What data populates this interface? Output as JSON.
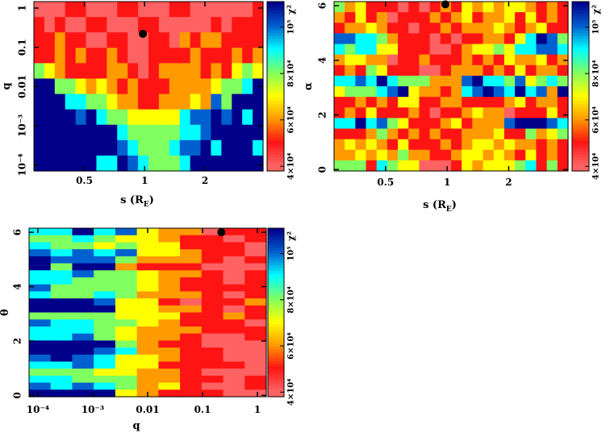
{
  "colors": {
    "c4": "#ff6262",
    "c5": "#ff1414",
    "c6": "#ff9a00",
    "c7": "#ffff00",
    "c8": "#80ff60",
    "c9": "#00ffff",
    "c10": "#0060d0",
    "c11": "#00008a"
  },
  "chart_data": [
    {
      "type": "heatmap",
      "xlabel": {
        "main": "s (R",
        "sub": "E",
        "end": ")"
      },
      "ylabel": "q",
      "xscale": "log",
      "xlim": [
        0.28,
        3.9
      ],
      "yscale": "log",
      "ylim": [
        7e-05,
        1.46
      ],
      "xticks": [
        {
          "v": 0.5,
          "label": "0.5"
        },
        {
          "v": 1,
          "label": "1"
        },
        {
          "v": 2,
          "label": "2"
        }
      ],
      "yticks": [
        {
          "v": 0.0001,
          "label": "10⁻⁴"
        },
        {
          "v": 0.001,
          "label": "10⁻³"
        },
        {
          "v": 0.01,
          "label": "0.01"
        },
        {
          "v": 0.1,
          "label": "0.1"
        },
        {
          "v": 1,
          "label": "1"
        }
      ],
      "colorbar": {
        "label": "χ²",
        "range": [
          3.8,
          11.1
        ],
        "ticks": [
          {
            "v": 4,
            "label": "4×10⁴"
          },
          {
            "v": 6,
            "label": "6×10⁴"
          },
          {
            "v": 8,
            "label": "8×10⁴"
          },
          {
            "v": 10,
            "label": "10⁵"
          }
        ]
      },
      "value_units": "χ² in units of 10⁴ (a=10, b=11)",
      "marker": {
        "x": 0.98,
        "y": 0.22
      },
      "grid": [
        "4445544455444554444445",
        "5454455444554444454555",
        "5565544554455465665555",
        "5565655654455556555656",
        "8765555665456666565787",
        "bb8876765655566667889b",
        "bbb99887665566676a8bbb",
        "bbbbab988777779aabab9b",
        "bbbbbbbb98888899abbbbb",
        "bbbbbbbba98889aab9bbb9",
        "bbbbbb99ba98889bbbbbbb"
      ]
    },
    {
      "type": "heatmap",
      "xlabel": {
        "main": "s (R",
        "sub": "E",
        "end": ")"
      },
      "ylabel": "α",
      "xscale": "log",
      "xlim": [
        0.28,
        3.9
      ],
      "yscale": "linear",
      "ylim": [
        -0.05,
        6.15
      ],
      "xticks": [
        {
          "v": 0.5,
          "label": "0.5"
        },
        {
          "v": 1,
          "label": "1"
        },
        {
          "v": 2,
          "label": "2"
        }
      ],
      "yticks": [
        {
          "v": 0,
          "label": "0"
        },
        {
          "v": 2,
          "label": "2"
        },
        {
          "v": 4,
          "label": "4"
        },
        {
          "v": 6,
          "label": "6"
        }
      ],
      "colorbar": {
        "label": "χ²",
        "range": [
          3.8,
          11.1
        ],
        "ticks": [
          {
            "v": 4,
            "label": "4×10⁴"
          },
          {
            "v": 6,
            "label": "6×10⁴"
          },
          {
            "v": 8,
            "label": "8×10⁴"
          },
          {
            "v": 10,
            "label": "10⁵"
          }
        ]
      },
      "value_units": "χ² in units of 10⁴ (a=10, b=11)",
      "marker": {
        "x": 0.98,
        "y": 6.05
      },
      "grid": [
        "8675554545657676776565",
        "6575645556567566757565",
        "5667655455656667656755",
        "aa99865554545566579ba8",
        "9899775554456778799aa9",
        "6776645565556565766756",
        "5658755544566656575665",
        "99a9b9888666ab998a7898",
        "78889ab766569aba9b9a6b",
        "5565657755665555675665",
        "5657555654556766455575",
        "99b9a87555675666abbba9",
        "5556865656556667558678",
        "6767657555656776766565",
        "6676768665567767657565",
        "8885987744457677789585"
      ]
    },
    {
      "type": "heatmap",
      "xlabel": {
        "main": "q",
        "sub": "",
        "end": ""
      },
      "ylabel": "θ",
      "xscale": "log",
      "xlim": [
        6.9e-05,
        1.45
      ],
      "yscale": "linear",
      "ylim": [
        -0.05,
        6.15
      ],
      "xticks": [
        {
          "v": 0.0001,
          "label": "10⁻⁴"
        },
        {
          "v": 0.001,
          "label": "10⁻³"
        },
        {
          "v": 0.01,
          "label": "0.01"
        },
        {
          "v": 0.1,
          "label": "0.1"
        },
        {
          "v": 1,
          "label": "1"
        }
      ],
      "yticks": [
        {
          "v": 0,
          "label": "0"
        },
        {
          "v": 2,
          "label": "2"
        },
        {
          "v": 4,
          "label": "4"
        },
        {
          "v": 6,
          "label": "6"
        }
      ],
      "colorbar": {
        "label": "χ²",
        "range": [
          3.8,
          11.1
        ],
        "ticks": [
          {
            "v": 4,
            "label": "4×10⁴"
          },
          {
            "v": 6,
            "label": "6×10⁴"
          },
          {
            "v": 8,
            "label": "8×10⁴"
          },
          {
            "v": 10,
            "label": "10⁵"
          }
        ]
      },
      "value_units": "χ² in units of 10⁴ (a=10, b=11)",
      "marker": {
        "x": 0.22,
        "y": 6.0
      },
      "grid": [
        "99b9a766455",
        "88987765545",
        "98878775554",
        "a9a9a776554",
        "baaa8666545",
        "b8bb6555444",
        "99a88766545",
        "99888765545",
        "a8888765555",
        "98898666545",
        "bbba7754556",
        "bbbb7766545",
        "88887775565",
        "a9988765554",
        "99987666555",
        "99a87665445",
        "bbbb8655444",
        "bbba9665544",
        "aba97765544",
        "99a97755554",
        "88877665444",
        "99888665545",
        "a9a98675445",
        "bbbb7655544"
      ]
    }
  ]
}
